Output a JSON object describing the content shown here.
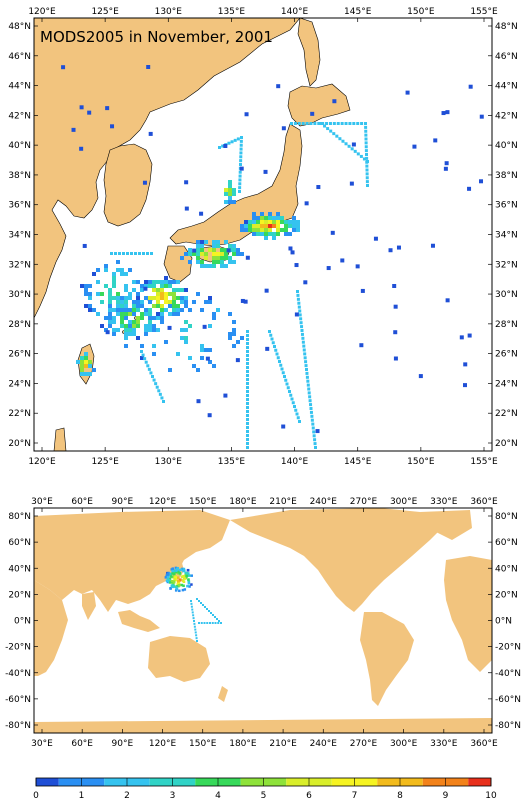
{
  "title": "MODS2005 in November, 2001",
  "colors": {
    "land": "#f2c47e",
    "ocean": "#ffffff",
    "frame": "#000000",
    "scale": [
      "#1f4fd6",
      "#2a8ff2",
      "#35c3ef",
      "#30d3c6",
      "#37d95a",
      "#8ee23a",
      "#d9ee2a",
      "#f6f422",
      "#f2bb1c",
      "#f2821a",
      "#e8301c"
    ]
  },
  "top_map": {
    "top_labels": [
      "120°E",
      "125°E",
      "130°E",
      "135°E",
      "140°E",
      "145°E",
      "150°E",
      "155°E"
    ],
    "bottom_labels": [
      "120°E",
      "125°E",
      "130°E",
      "135°E",
      "140°E",
      "145°E",
      "150°E",
      "155°E"
    ],
    "left_labels": [
      "48°N",
      "46°N",
      "44°N",
      "42°N",
      "40°N",
      "38°N",
      "36°N",
      "34°N",
      "32°N",
      "30°N",
      "28°N",
      "26°N",
      "24°N",
      "22°N",
      "20°N"
    ],
    "right_labels": [
      "48°N",
      "46°N",
      "44°N",
      "42°N",
      "40°N",
      "38°N",
      "36°N",
      "34°N",
      "32°N",
      "30°N",
      "28°N",
      "26°N",
      "24°N",
      "22°N",
      "20°N"
    ]
  },
  "bottom_map": {
    "top_labels": [
      "30°E",
      "60°E",
      "90°E",
      "120°E",
      "150°E",
      "180°E",
      "210°E",
      "240°E",
      "270°E",
      "300°E",
      "330°E",
      "360°E"
    ],
    "bottom_labels": [
      "30°E",
      "60°E",
      "90°E",
      "120°E",
      "150°E",
      "180°E",
      "210°E",
      "240°E",
      "270°E",
      "300°E",
      "330°E",
      "360°E"
    ],
    "left_labels": [
      "80°N",
      "60°N",
      "40°N",
      "20°N",
      "0°N",
      "-20°N",
      "-40°N",
      "-60°N",
      "-80°N"
    ],
    "right_labels": [
      "80°N",
      "60°N",
      "40°N",
      "20°N",
      "0°N",
      "-20°N",
      "-40°N",
      "-60°N",
      "-80°N"
    ]
  },
  "colorbar": {
    "labels": [
      "0",
      "1",
      "2",
      "3",
      "4",
      "5",
      "6",
      "7",
      "8",
      "9",
      "10"
    ]
  }
}
